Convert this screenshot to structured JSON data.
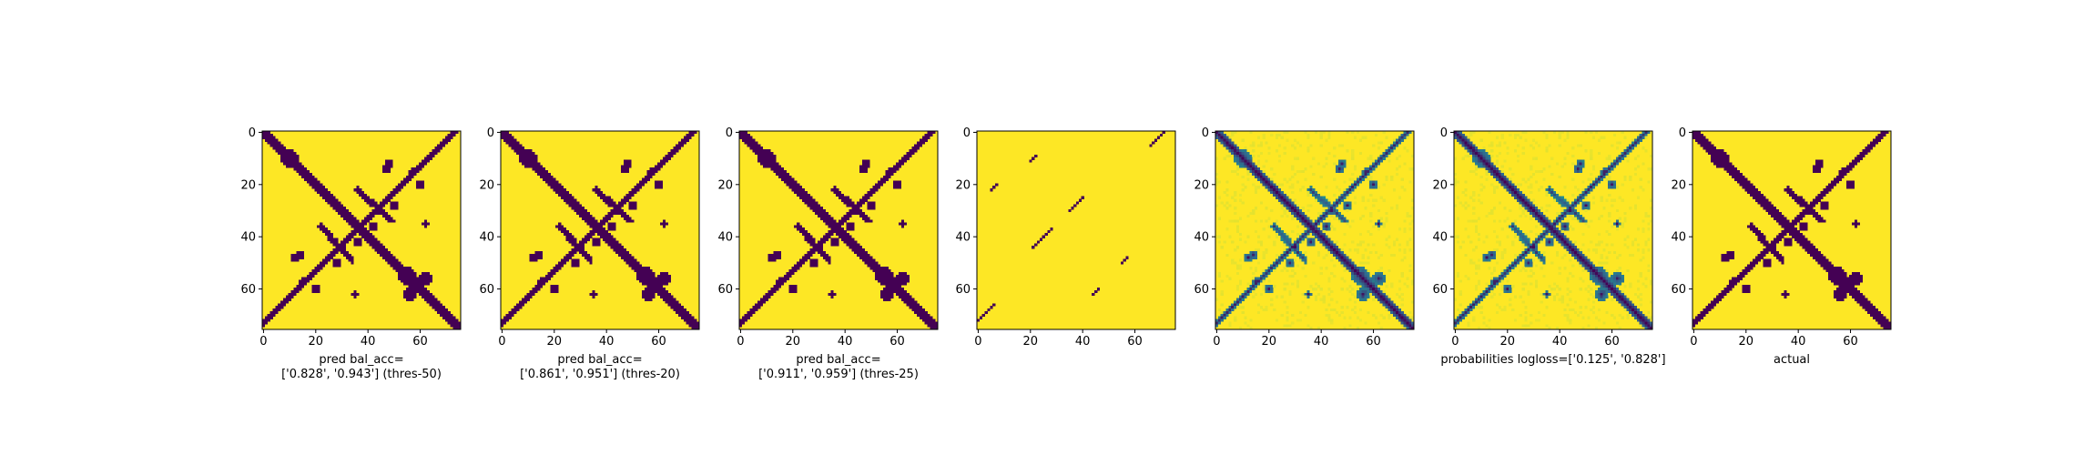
{
  "chart_data": [
    {
      "type": "heatmap",
      "title": "",
      "xlabel": "pred bal_acc=\n['0.828', '0.943'] (thres-50)",
      "ylabel": "",
      "xlim": [
        0,
        76
      ],
      "ylim": [
        76,
        0
      ],
      "xticks": [
        0,
        20,
        40,
        60
      ],
      "yticks": [
        0,
        20,
        40,
        60
      ],
      "values": "binary contact map (0 = dark purple, 1 = yellow), 76x76",
      "features": {
        "main_diagonal": true,
        "anti_diagonal": [
          [
            5,
            5
          ],
          [
            40,
            40
          ],
          [
            74,
            74
          ]
        ],
        "blobs": [
          [
            10,
            10
          ],
          [
            55,
            55
          ],
          [
            58,
            58
          ],
          [
            47,
            14
          ],
          [
            22,
            60
          ],
          [
            35,
            62
          ],
          [
            48,
            10
          ]
        ],
        "short_diagonals": [
          [
            0,
            0
          ],
          [
            10,
            10
          ]
        ]
      }
    },
    {
      "type": "heatmap",
      "title": "",
      "xlabel": "pred bal_acc=\n['0.861', '0.951'] (thres-20)",
      "ylabel": "",
      "xlim": [
        0,
        76
      ],
      "ylim": [
        76,
        0
      ],
      "xticks": [
        0,
        20,
        40,
        60
      ],
      "yticks": [
        0,
        20,
        40,
        60
      ],
      "values": "binary contact map (0 = dark purple, 1 = yellow), 76x76"
    },
    {
      "type": "heatmap",
      "title": "",
      "xlabel": "pred bal_acc=\n['0.911', '0.959'] (thres-25)",
      "ylabel": "",
      "xlim": [
        0,
        76
      ],
      "ylim": [
        76,
        0
      ],
      "xticks": [
        0,
        20,
        40,
        60
      ],
      "yticks": [
        0,
        20,
        40,
        60
      ],
      "values": "binary contact map (0 = dark purple, 1 = yellow), 76x76"
    },
    {
      "type": "heatmap",
      "title": "",
      "xlabel": "",
      "ylabel": "",
      "xlim": [
        0,
        76
      ],
      "ylim": [
        76,
        0
      ],
      "xticks": [
        0,
        20,
        40,
        60
      ],
      "yticks": [
        0,
        20,
        40,
        60
      ],
      "values": "sparse binary map with thin diagonal dashes, 76x76"
    },
    {
      "type": "heatmap",
      "title": "",
      "xlabel": "",
      "ylabel": "",
      "xlim": [
        0,
        76
      ],
      "ylim": [
        76,
        0
      ],
      "xticks": [
        0,
        20,
        40,
        60
      ],
      "yticks": [
        0,
        20,
        40,
        60
      ],
      "values": "continuous probability map (viridis), 76x76"
    },
    {
      "type": "heatmap",
      "title": "",
      "xlabel": "probabilities logloss=['0.125', '0.828']",
      "ylabel": "",
      "xlim": [
        0,
        76
      ],
      "ylim": [
        76,
        0
      ],
      "xticks": [
        0,
        20,
        40,
        60
      ],
      "yticks": [
        0,
        20,
        40,
        60
      ],
      "values": "continuous probability map (viridis), 76x76"
    },
    {
      "type": "heatmap",
      "title": "",
      "xlabel": "actual",
      "ylabel": "",
      "xlim": [
        0,
        76
      ],
      "ylim": [
        76,
        0
      ],
      "xticks": [
        0,
        20,
        40,
        60
      ],
      "yticks": [
        0,
        20,
        40,
        60
      ],
      "values": "binary ground-truth contact map, 76x76"
    }
  ],
  "colors": {
    "low": "#440154",
    "mid_low": "#31688e",
    "mid": "#21918c",
    "mid_high": "#5ec962",
    "high": "#fde725",
    "axis": "#000000",
    "background": "#ffffff"
  }
}
